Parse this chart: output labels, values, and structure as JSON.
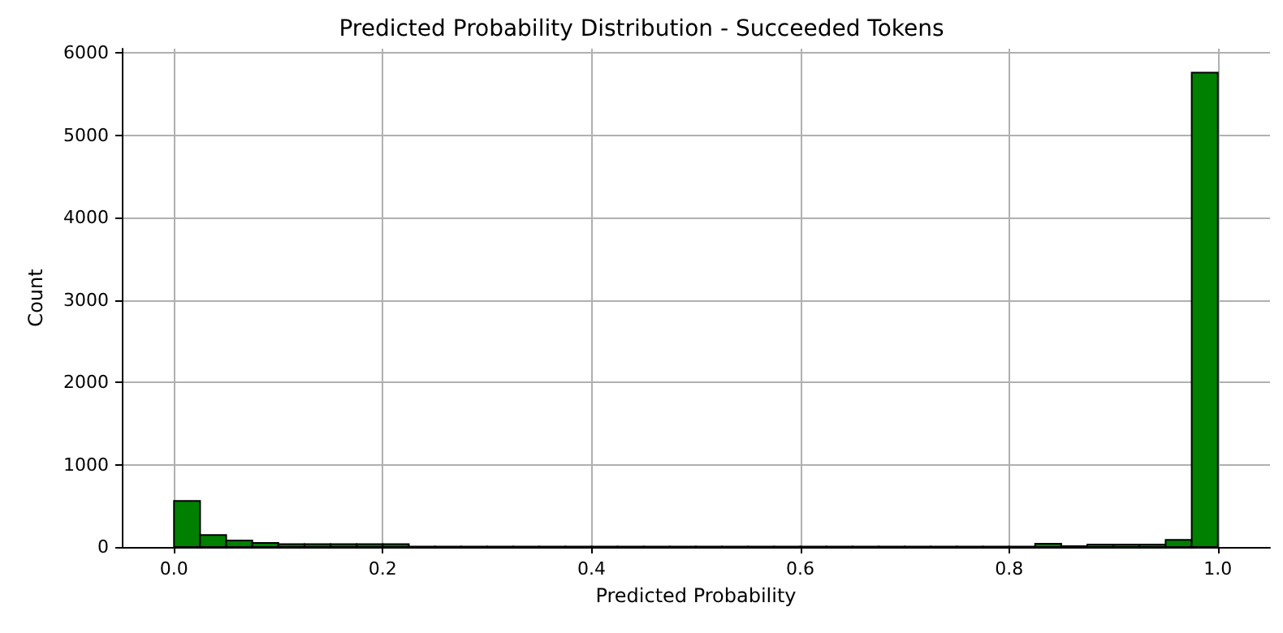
{
  "chart_data": {
    "type": "histogram",
    "title": "Predicted Probability Distribution - Succeeded Tokens",
    "xlabel": "Predicted Probability",
    "ylabel": "Count",
    "bins": [
      0,
      0.025,
      0.05,
      0.075,
      0.1,
      0.125,
      0.15,
      0.175,
      0.2,
      0.225,
      0.25,
      0.275,
      0.3,
      0.325,
      0.35,
      0.375,
      0.4,
      0.425,
      0.45,
      0.475,
      0.5,
      0.525,
      0.55,
      0.575,
      0.6,
      0.625,
      0.65,
      0.675,
      0.7,
      0.725,
      0.75,
      0.775,
      0.8,
      0.825,
      0.85,
      0.875,
      0.9,
      0.925,
      0.95,
      0.975,
      1
    ],
    "values": [
      560,
      146,
      80,
      50,
      35,
      35,
      35,
      35,
      35,
      5,
      5,
      5,
      5,
      5,
      5,
      5,
      5,
      5,
      5,
      5,
      5,
      5,
      5,
      5,
      5,
      5,
      5,
      5,
      5,
      5,
      5,
      5,
      5,
      40,
      10,
      30,
      30,
      30,
      85,
      5760
    ],
    "color": "#008000",
    "xlim": [
      -0.05,
      1.05
    ],
    "xticks": [
      {
        "value": 0,
        "label": "0.0"
      },
      {
        "value": 0.2,
        "label": "0.2"
      },
      {
        "value": 0.4,
        "label": "0.4"
      },
      {
        "value": 0.6,
        "label": "0.6"
      },
      {
        "value": 0.8,
        "label": "0.8"
      },
      {
        "value": 1,
        "label": "1.0"
      }
    ],
    "ylim": [
      0,
      6050
    ],
    "yticks": [
      0,
      1000,
      2000,
      3000,
      4000,
      5000,
      6000
    ],
    "grid": true
  }
}
